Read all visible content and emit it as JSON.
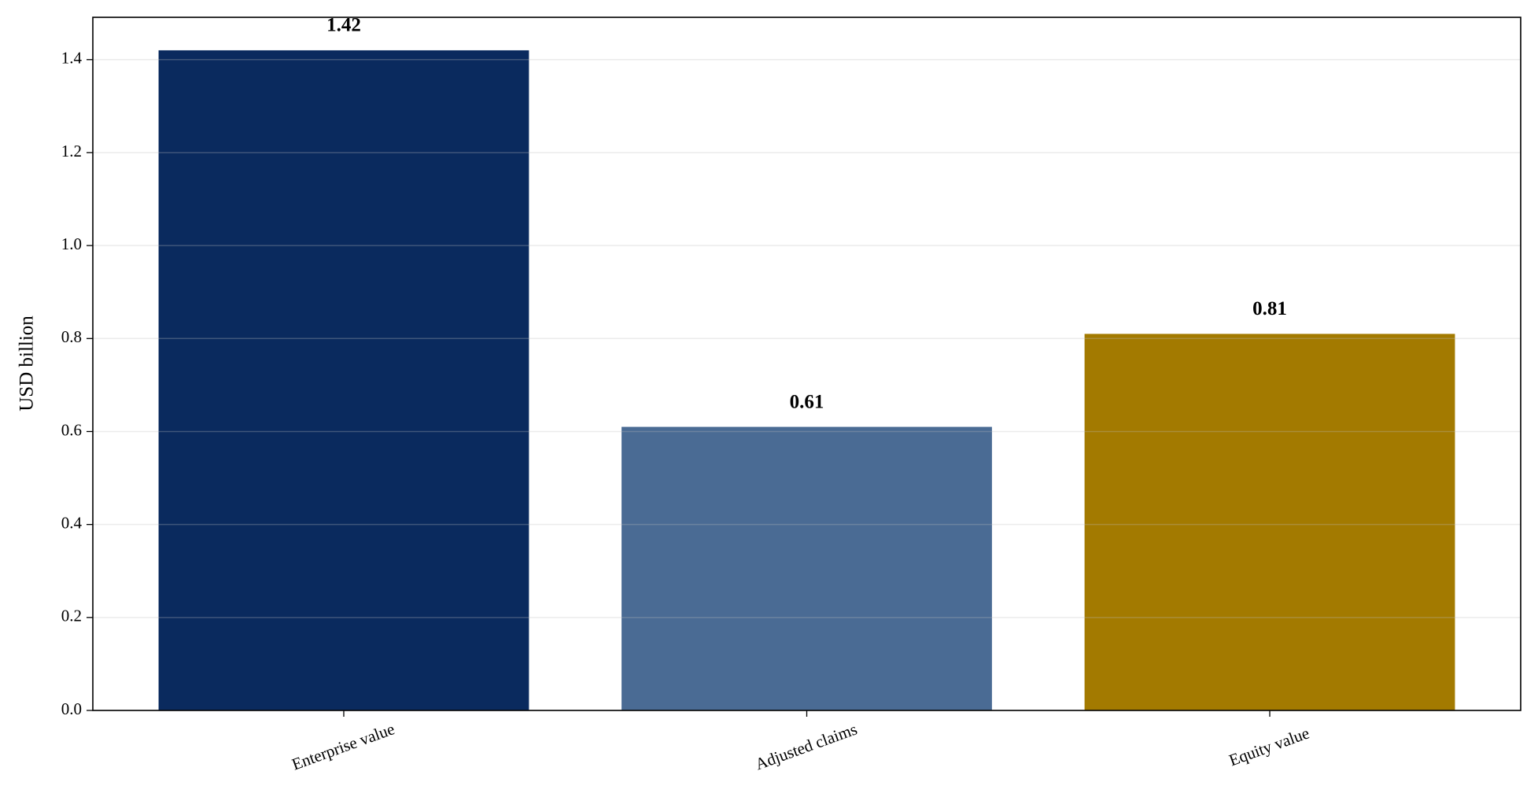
{
  "chart_data": {
    "type": "bar",
    "y_label": "USD billion",
    "categories": [
      "Enterprise value",
      "Adjusted claims",
      "Equity value"
    ],
    "values": [
      1.42,
      0.61,
      0.81
    ],
    "colors": [
      "#0a2a5e",
      "#4a6b94",
      "#a37a00"
    ],
    "ylim": [
      0,
      1.491
    ],
    "yticks": [
      {
        "value": 0,
        "label": "0.0"
      },
      0.2,
      0.4,
      0.6,
      0.8,
      {
        "value": 1,
        "label": "1.0"
      },
      1.2,
      1.4
    ],
    "grid": true
  }
}
